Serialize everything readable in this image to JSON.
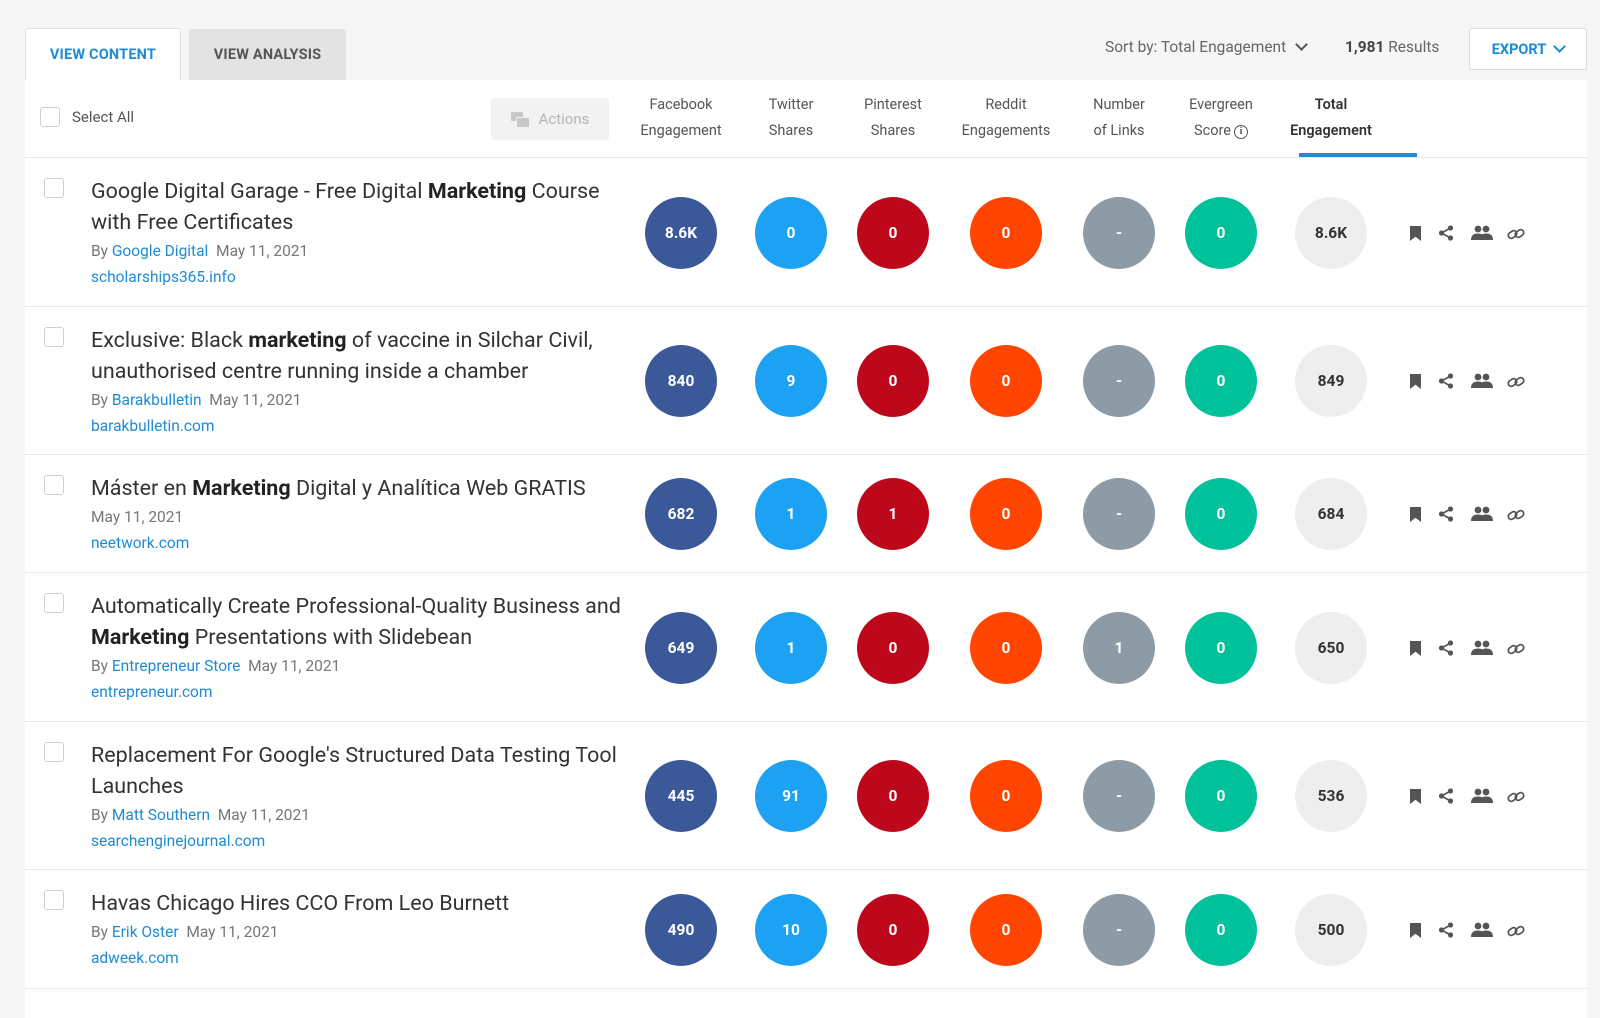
{
  "tabs": {
    "view_content": "VIEW CONTENT",
    "view_analysis": "VIEW ANALYSIS"
  },
  "sort": {
    "label": "Sort by: Total Engagement"
  },
  "results": {
    "count": "1,981",
    "label": "Results"
  },
  "export_label": "EXPORT",
  "select_all": "Select All",
  "actions_label": "Actions",
  "columns": [
    {
      "line1": "Facebook",
      "line2": "Engagement"
    },
    {
      "line1": "Twitter",
      "line2": "Shares"
    },
    {
      "line1": "Pinterest",
      "line2": "Shares"
    },
    {
      "line1": "Reddit",
      "line2": "Engagements"
    },
    {
      "line1": "Number",
      "line2": "of Links"
    },
    {
      "line1": "Evergreen",
      "line2": "Score"
    },
    {
      "line1": "Total",
      "line2": "Engagement"
    }
  ],
  "colors": {
    "facebook": "#3b5998",
    "twitter": "#1da1f2",
    "pinterest": "#bd081c",
    "reddit": "#ff4500",
    "links": "#8c9ba5",
    "evergreen": "#00c19a",
    "accent": "#1e8bd2"
  },
  "row_icons": [
    "bookmark-icon",
    "share-icon",
    "influencers-icon",
    "link-icon"
  ],
  "rows": [
    {
      "title_html": "Google Digital Garage - Free Digital <b>Marketing</b> Course with Free Certificates",
      "by": "By",
      "author": "Google Digital",
      "date": "May 11, 2021",
      "domain": "scholarships365.info",
      "facebook": "8.6K",
      "twitter": "0",
      "pinterest": "0",
      "reddit": "0",
      "links": "-",
      "evergreen": "0",
      "total": "8.6K"
    },
    {
      "title_html": "Exclusive: Black <b>marketing</b> of vaccine in Silchar Civil, unauthorised centre running inside a chamber",
      "by": "By",
      "author": "Barakbulletin",
      "date": "May 11, 2021",
      "domain": "barakbulletin.com",
      "facebook": "840",
      "twitter": "9",
      "pinterest": "0",
      "reddit": "0",
      "links": "-",
      "evergreen": "0",
      "total": "849"
    },
    {
      "title_html": "Máster en <b>Marketing</b> Digital y Analítica Web GRATIS",
      "by": "",
      "author": "",
      "date": "May 11, 2021",
      "domain": "neetwork.com",
      "facebook": "682",
      "twitter": "1",
      "pinterest": "1",
      "reddit": "0",
      "links": "-",
      "evergreen": "0",
      "total": "684"
    },
    {
      "title_html": "Automatically Create Professional-Quality Business and <b>Marketing</b> Presentations with Slidebean",
      "by": "By",
      "author": "Entrepreneur Store",
      "date": "May 11, 2021",
      "domain": "entrepreneur.com",
      "facebook": "649",
      "twitter": "1",
      "pinterest": "0",
      "reddit": "0",
      "links": "1",
      "evergreen": "0",
      "total": "650"
    },
    {
      "title_html": "Replacement For Google's Structured Data Testing Tool Launches",
      "by": "By",
      "author": "Matt Southern",
      "date": "May 11, 2021",
      "domain": "searchenginejournal.com",
      "facebook": "445",
      "twitter": "91",
      "pinterest": "0",
      "reddit": "0",
      "links": "-",
      "evergreen": "0",
      "total": "536"
    },
    {
      "title_html": "Havas Chicago Hires CCO From Leo Burnett",
      "by": "By",
      "author": "Erik Oster",
      "date": "May 11, 2021",
      "domain": "adweek.com",
      "facebook": "490",
      "twitter": "10",
      "pinterest": "0",
      "reddit": "0",
      "links": "-",
      "evergreen": "0",
      "total": "500"
    }
  ]
}
